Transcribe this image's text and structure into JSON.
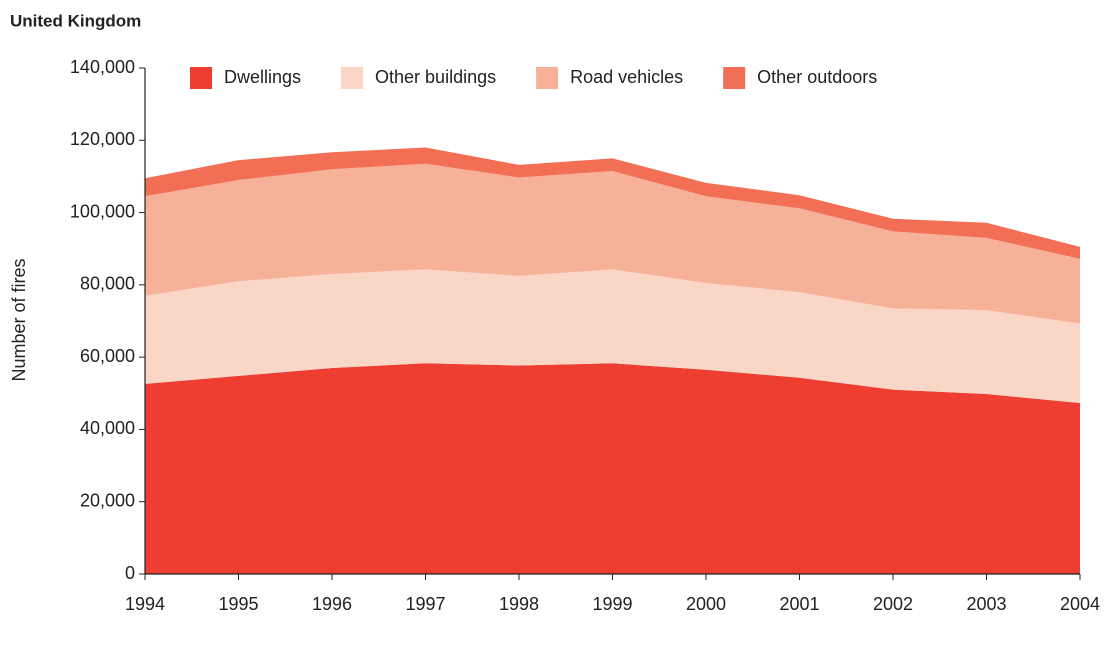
{
  "chart_data": {
    "type": "stacked_area",
    "subtitle": "United Kingdom",
    "ylabel": "Number of fires",
    "x": [
      1994,
      1995,
      1996,
      1997,
      1998,
      1999,
      2000,
      2001,
      2002,
      2003,
      2004
    ],
    "xlim": [
      1994,
      2004
    ],
    "xticks": [
      1994,
      1995,
      1996,
      1997,
      1998,
      1999,
      2000,
      2001,
      2002,
      2003,
      2004
    ],
    "ylim": [
      0,
      140000
    ],
    "yticks": [
      0,
      {
        "value": 20000,
        "label": "20,000"
      },
      {
        "value": 40000,
        "label": "40,000"
      },
      {
        "value": 60000,
        "label": "60,000"
      },
      {
        "value": 80000,
        "label": "80,000"
      },
      {
        "value": 100000,
        "label": "100,000"
      },
      {
        "value": 120000,
        "label": "120,000"
      },
      {
        "value": 140000,
        "label": "140,000"
      }
    ],
    "legend": "top",
    "series": [
      {
        "name": "Dwellings",
        "color": "#ee3e32",
        "values": [
          52600,
          54800,
          57000,
          58300,
          57700,
          58300,
          56500,
          54300,
          51000,
          49800,
          47300
        ]
      },
      {
        "name": "Other buildings",
        "color": "#fad6c6",
        "values": [
          24400,
          26200,
          26000,
          26000,
          24800,
          26000,
          24000,
          23700,
          22500,
          23200,
          22000
        ]
      },
      {
        "name": "Road vehicles",
        "color": "#f7b199",
        "values": [
          27500,
          28000,
          29000,
          29200,
          27200,
          27200,
          24000,
          23200,
          21300,
          20000,
          17900
        ]
      },
      {
        "name": "Other outdoors",
        "color": "#f26f55",
        "values": [
          5000,
          5500,
          4700,
          4500,
          3500,
          3500,
          3700,
          3600,
          3500,
          4200,
          3300
        ]
      }
    ]
  }
}
